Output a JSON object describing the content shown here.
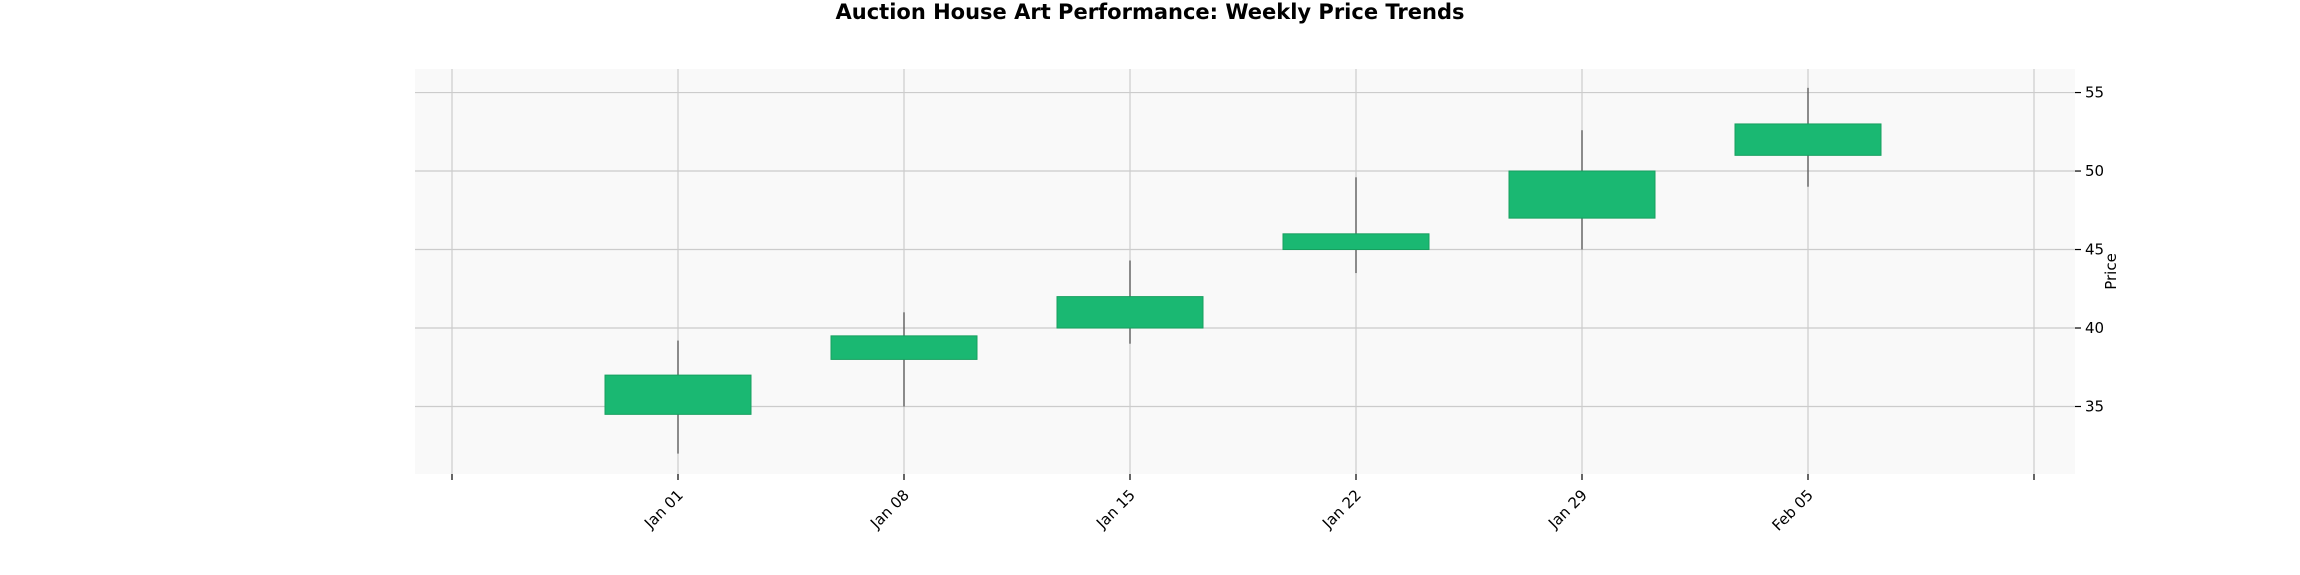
{
  "chart_data": {
    "type": "candlestick",
    "title": "Auction House Art Performance: Weekly Price Trends",
    "ylabel": "Price",
    "xlabel": "",
    "y_axis_side": "right",
    "ylim": [
      30.7,
      56.5
    ],
    "yticks": [
      35,
      40,
      45,
      50,
      55
    ],
    "grid": true,
    "x_tick_labels": [
      "Jan 01",
      "Jan 08",
      "Jan 15",
      "Jan 22",
      "Jan 29",
      "Feb 05"
    ],
    "candles": [
      {
        "date": "Jan 01",
        "open": 34.5,
        "high": 39.2,
        "low": 32.0,
        "close": 37.0
      },
      {
        "date": "Jan 08",
        "open": 38.0,
        "high": 41.0,
        "low": 35.0,
        "close": 39.5
      },
      {
        "date": "Jan 15",
        "open": 40.0,
        "high": 44.3,
        "low": 39.0,
        "close": 42.0
      },
      {
        "date": "Jan 22",
        "open": 45.0,
        "high": 49.6,
        "low": 43.5,
        "close": 46.0
      },
      {
        "date": "Jan 29",
        "open": 47.0,
        "high": 52.6,
        "low": 45.0,
        "close": 50.0
      },
      {
        "date": "Feb 05",
        "open": 51.0,
        "high": 55.3,
        "low": 49.0,
        "close": 53.0
      }
    ],
    "colors": {
      "up_fill": "#1ab872",
      "up_edge": "#16a05f",
      "wick": "#555555",
      "plot_bg": "#f9f9f9",
      "grid": "#cccccc"
    }
  }
}
